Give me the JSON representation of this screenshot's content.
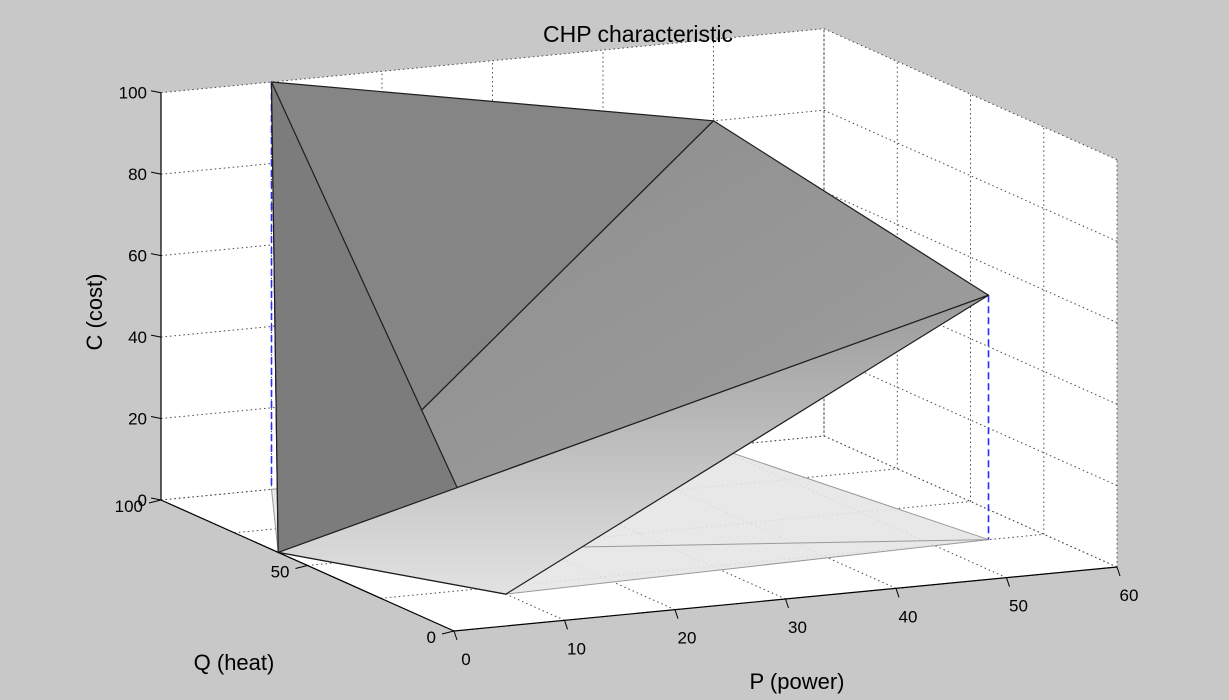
{
  "chart_data": {
    "type": "surface3d",
    "title": "CHP characteristic",
    "xlabel": "P (power)",
    "ylabel": "Q (heat)",
    "zlabel": "C (cost)",
    "xlim": [
      0,
      60
    ],
    "ylim": [
      0,
      100
    ],
    "zlim": [
      0,
      100
    ],
    "xticks": [
      0,
      10,
      20,
      30,
      40,
      50,
      60
    ],
    "yticks": [
      0,
      50,
      100
    ],
    "zticks": [
      0,
      20,
      40,
      60,
      80,
      100
    ],
    "grid": true,
    "vertices": [
      {
        "P": 10,
        "Q": 100,
        "C": 100
      },
      {
        "P": 50,
        "Q": 100,
        "C": 80
      },
      {
        "P": 55,
        "Q": 25,
        "C": 60
      },
      {
        "P": 10,
        "Q": 20,
        "C": 0
      },
      {
        "P": 0,
        "Q": 60,
        "C": 0
      }
    ],
    "faces": [
      [
        0,
        1,
        4
      ],
      [
        1,
        2,
        4
      ],
      [
        0,
        4,
        3
      ],
      [
        2,
        3,
        4
      ]
    ],
    "drop_lines_color": "#2b2bff",
    "surface_color": "#8c8c8c",
    "floor_color": "#e6e6e6"
  }
}
